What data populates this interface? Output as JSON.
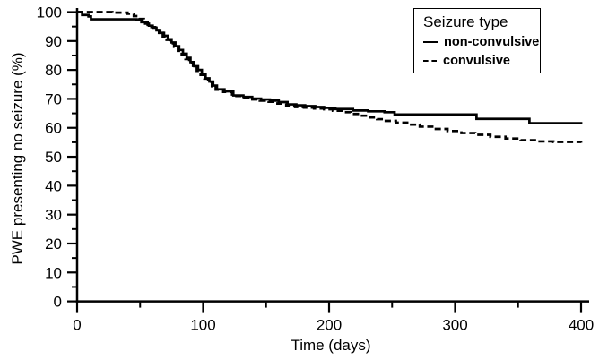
{
  "figure": {
    "background": "#ffffff",
    "ink": "#000000"
  },
  "legend": {
    "title": "Seizure type",
    "items": [
      {
        "label": "non-convulsive",
        "line_style": "solid"
      },
      {
        "label": "convulsive",
        "line_style": "dashed"
      }
    ]
  },
  "chart_data": {
    "type": "line",
    "subtype": "kaplan-meier-step-curve",
    "title": "",
    "xlabel": "Time (days)",
    "ylabel": "PWE presenting no seizure (%)",
    "xlim": [
      0,
      400
    ],
    "ylim": [
      0,
      100
    ],
    "x_major_ticks": [
      0,
      100,
      200,
      300,
      400
    ],
    "x_tick_labels": [
      "0",
      "100",
      "200",
      "300",
      "400"
    ],
    "x_minor_step": 50,
    "y_major_ticks": [
      0,
      10,
      20,
      30,
      40,
      50,
      60,
      70,
      80,
      90,
      100
    ],
    "y_tick_labels": [
      "0",
      "10",
      "20",
      "30",
      "40",
      "50",
      "60",
      "70",
      "80",
      "90",
      "100"
    ],
    "y_minor_step": 5,
    "grid": false,
    "legend_position": "top-right",
    "color": "#000000",
    "series": [
      {
        "name": "non-convulsive",
        "style": "solid",
        "color": "#000000",
        "points": [
          [
            0,
            100
          ],
          [
            4,
            99
          ],
          [
            9,
            98.5
          ],
          [
            11,
            97.5
          ],
          [
            47,
            97.2
          ],
          [
            51,
            96.5
          ],
          [
            54,
            96
          ],
          [
            57,
            95.3
          ],
          [
            60,
            94.6
          ],
          [
            63,
            93.7
          ],
          [
            66,
            92.8
          ],
          [
            69,
            91.8
          ],
          [
            72,
            90.6
          ],
          [
            75,
            89.5
          ],
          [
            78,
            88.2
          ],
          [
            81,
            86.9
          ],
          [
            84,
            85.6
          ],
          [
            87,
            84.2
          ],
          [
            90,
            82.7
          ],
          [
            93,
            81.3
          ],
          [
            96,
            80
          ],
          [
            99,
            78.4
          ],
          [
            102,
            77.1
          ],
          [
            105,
            76
          ],
          [
            108,
            74.6
          ],
          [
            111,
            73.3
          ],
          [
            117,
            72.6
          ],
          [
            124,
            71.2
          ],
          [
            132,
            70.7
          ],
          [
            139,
            70.1
          ],
          [
            146,
            69.8
          ],
          [
            153,
            69.4
          ],
          [
            160,
            68.9
          ],
          [
            167,
            68.1
          ],
          [
            174,
            67.8
          ],
          [
            181,
            67.5
          ],
          [
            189,
            67.2
          ],
          [
            196,
            66.9
          ],
          [
            205,
            66.5
          ],
          [
            219,
            66
          ],
          [
            231,
            65.7
          ],
          [
            244,
            65.4
          ],
          [
            252,
            64.6
          ],
          [
            317,
            63.1
          ],
          [
            359,
            61.6
          ],
          [
            401,
            61.6
          ]
        ]
      },
      {
        "name": "convulsive",
        "style": "dashed",
        "color": "#000000",
        "points": [
          [
            0,
            100
          ],
          [
            28,
            99.8
          ],
          [
            40,
            99.4
          ],
          [
            45,
            98.6
          ],
          [
            49,
            97.6
          ],
          [
            53,
            96.6
          ],
          [
            56,
            95.6
          ],
          [
            59,
            94.8
          ],
          [
            62,
            93.8
          ],
          [
            65,
            92.8
          ],
          [
            68,
            91.6
          ],
          [
            71,
            90.4
          ],
          [
            74,
            89.2
          ],
          [
            77,
            88
          ],
          [
            80,
            86.6
          ],
          [
            83,
            85.2
          ],
          [
            86,
            83.8
          ],
          [
            89,
            82.4
          ],
          [
            92,
            81
          ],
          [
            95,
            79.7
          ],
          [
            98,
            78.3
          ],
          [
            101,
            77
          ],
          [
            104,
            75.8
          ],
          [
            107,
            74.4
          ],
          [
            110,
            73.2
          ],
          [
            116,
            72.4
          ],
          [
            123,
            71
          ],
          [
            131,
            70.4
          ],
          [
            138,
            69.8
          ],
          [
            145,
            69.4
          ],
          [
            152,
            69
          ],
          [
            159,
            68.4
          ],
          [
            166,
            67.6
          ],
          [
            173,
            67.2
          ],
          [
            180,
            67
          ],
          [
            188,
            66.7
          ],
          [
            196,
            66.4
          ],
          [
            203,
            65.9
          ],
          [
            210,
            65.4
          ],
          [
            217,
            64.8
          ],
          [
            224,
            64.2
          ],
          [
            231,
            63.6
          ],
          [
            238,
            63
          ],
          [
            245,
            62.4
          ],
          [
            253,
            61.8
          ],
          [
            262,
            61.1
          ],
          [
            272,
            60.4
          ],
          [
            283,
            59.6
          ],
          [
            294,
            58.9
          ],
          [
            305,
            58.2
          ],
          [
            316,
            57.6
          ],
          [
            328,
            56.9
          ],
          [
            340,
            56.3
          ],
          [
            352,
            55.7
          ],
          [
            365,
            55.3
          ],
          [
            378,
            55.1
          ],
          [
            400,
            54.8
          ]
        ]
      }
    ]
  }
}
